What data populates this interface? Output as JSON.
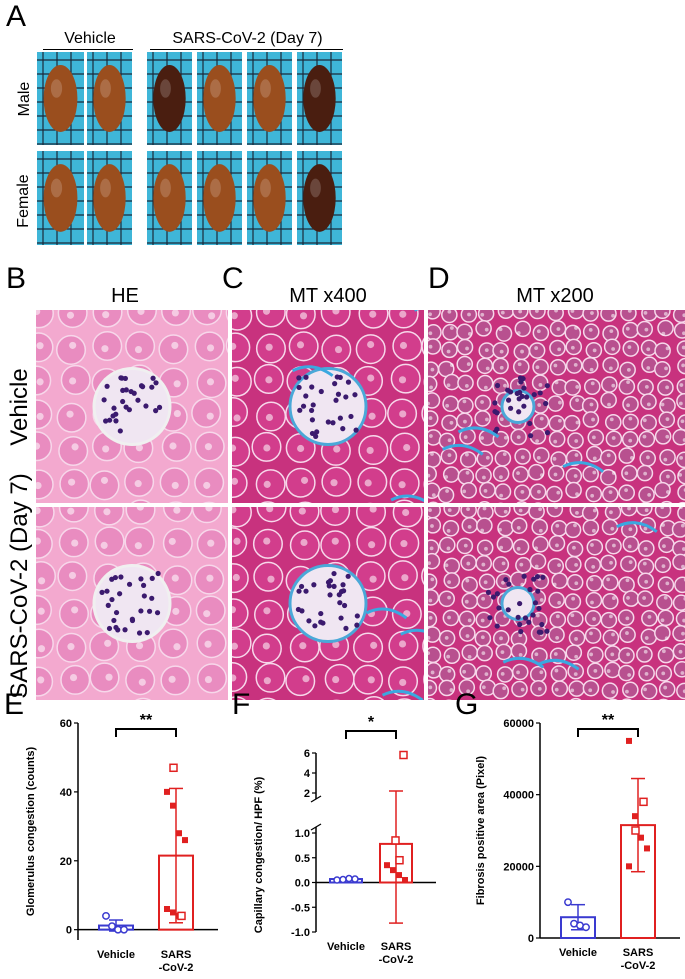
{
  "panels": {
    "A": "A",
    "B": "B",
    "C": "C",
    "D": "D",
    "E": "E",
    "F": "F",
    "G": "G"
  },
  "panelA": {
    "vehicle_label": "Vehicle",
    "sars_label": "SARS-CoV-2 (Day 7)",
    "male_label": "Male",
    "female_label": "Female"
  },
  "histology": {
    "col_he": "HE",
    "col_mt400": "MT x400",
    "col_mt200": "MT x200",
    "row_vehicle": "Vehicle",
    "row_sars": "SARS-CoV-2 (Day 7)"
  },
  "colors": {
    "vehicle": "#3a3ad0",
    "sars": "#e02020",
    "he_bg": "#f3a9cf",
    "mt_bg": "#c8327e",
    "grid_bg": "#3fb6d8"
  },
  "chart_data": [
    {
      "panel": "E",
      "type": "bar",
      "categories": [
        "Vehicle",
        "SARS\n-CoV-2"
      ],
      "category_lines": [
        [
          "Vehicle"
        ],
        [
          "SARS",
          "-CoV-2"
        ]
      ],
      "ylabel": "Glomerulus congestion (counts)",
      "ylim": [
        -3,
        60
      ],
      "yticks": [
        0,
        20,
        40,
        60
      ],
      "bars": [
        1.2,
        21.5
      ],
      "errors": [
        1.6,
        19.5
      ],
      "significance": "**",
      "points": {
        "vehicle_open": [
          4,
          1,
          0,
          0
        ],
        "sars_filled": [
          40,
          36,
          28,
          26,
          6,
          5,
          4
        ],
        "sars_open": [
          47,
          4
        ]
      }
    },
    {
      "panel": "F",
      "type": "bar",
      "categories": [
        "Vehicle",
        "SARS\n-CoV-2"
      ],
      "category_lines": [
        [
          "Vehicle"
        ],
        [
          "SARS",
          "-CoV-2"
        ]
      ],
      "ylabel": "Capillary congestion/ HPF (%)",
      "yticks_lower": [
        "-1.0",
        "-0.5",
        "0.0",
        "0.5",
        "1.0"
      ],
      "yticks_upper": [
        "2",
        "4",
        "6"
      ],
      "bars": [
        0.07,
        0.78
      ],
      "significance": "*",
      "points": {
        "vehicle_open": [
          0.05,
          0.06,
          0.08,
          0.07
        ],
        "sars_filled": [
          0.35,
          0.25,
          0.15,
          0.05
        ],
        "sars_open": [
          0.85,
          0.45,
          5.8
        ]
      }
    },
    {
      "panel": "G",
      "type": "bar",
      "categories": [
        "Vehicle",
        "SARS\n-CoV-2"
      ],
      "category_lines": [
        [
          "Vehicle"
        ],
        [
          "SARS",
          "-CoV-2"
        ]
      ],
      "ylabel": "Fibrosis positive area (Pixel)",
      "ylim": [
        0,
        60000
      ],
      "yticks": [
        0,
        20000,
        40000,
        60000
      ],
      "bars": [
        5800,
        31500
      ],
      "errors": [
        3500,
        13000
      ],
      "significance": "**",
      "points": {
        "vehicle_open": [
          10000,
          4000,
          3500,
          3000
        ],
        "sars_filled": [
          55000,
          34000,
          28000,
          25000,
          20000
        ],
        "sars_open": [
          30000,
          38000
        ]
      }
    }
  ]
}
